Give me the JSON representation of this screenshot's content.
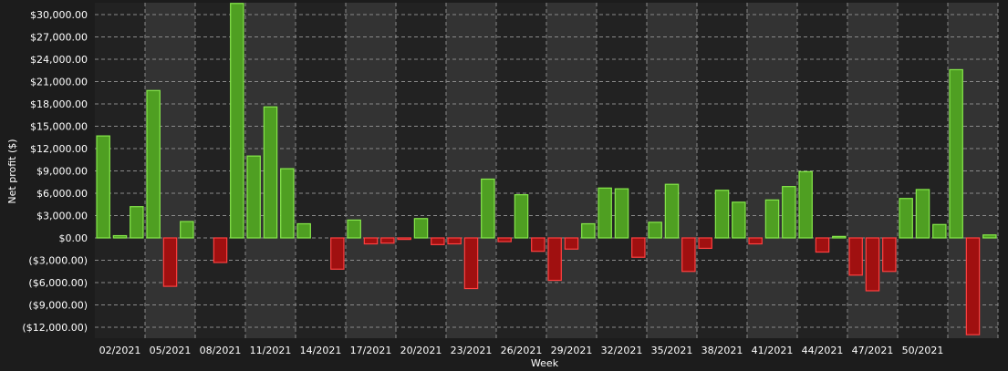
{
  "colors": {
    "background": "#1c1c1c",
    "band_dark": "#222222",
    "band_light": "#333333",
    "grid": "#8a8a8a",
    "positive_fill": "#4f9f22",
    "positive_stroke": "#86e84a",
    "negative_fill": "#a01010",
    "negative_stroke": "#ff4040",
    "text": "#ffffff"
  },
  "chart_data": {
    "type": "bar",
    "xlabel": "Week",
    "ylabel": "Net profit ($)",
    "ylim": [
      -13500,
      31500
    ],
    "yticks": [
      30000,
      27000,
      24000,
      21000,
      18000,
      15000,
      12000,
      9000,
      6000,
      3000,
      0,
      -3000,
      -6000,
      -9000,
      -12000
    ],
    "ytick_labels": [
      "$30,000.00",
      "$27,000.00",
      "$24,000.00",
      "$21,000.00",
      "$18,000.00",
      "$15,000.00",
      "$12,000.00",
      "$9,000.00",
      "$6,000.00",
      "$3,000.00",
      "$0.00",
      "($3,000.00)",
      "($6,000.00)",
      "($9,000.00)",
      "($12,000.00)"
    ],
    "xtick_labels": [
      "02/2021",
      "05/2021",
      "08/2021",
      "11/2021",
      "14/2021",
      "17/2021",
      "20/2021",
      "23/2021",
      "26/2021",
      "29/2021",
      "32/2021",
      "35/2021",
      "38/2021",
      "41/2021",
      "44/2021",
      "47/2021",
      "50/2021"
    ],
    "grid": true,
    "legend": "none",
    "values": [
      13700,
      300,
      4200,
      19800,
      -6500,
      2200,
      0,
      -3300,
      31500,
      11000,
      17600,
      9300,
      1900,
      0,
      -4200,
      2400,
      -800,
      -700,
      -200,
      2600,
      -900,
      -800,
      -6800,
      7900,
      -500,
      5800,
      -1800,
      -5700,
      -1500,
      1900,
      6700,
      6600,
      -2600,
      2100,
      7200,
      -4500,
      -1400,
      6400,
      4800,
      -800,
      5100,
      6900,
      8900,
      -1900,
      200,
      -5000,
      -7100,
      -4500,
      5300,
      6500,
      1800,
      22600,
      -13000,
      400
    ]
  }
}
